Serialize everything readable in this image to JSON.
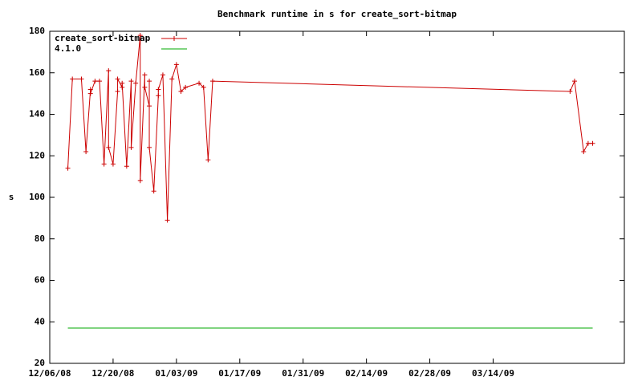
{
  "chart_data": {
    "type": "line",
    "title": "Benchmark runtime in s for create_sort-bitmap",
    "ylabel": "s",
    "xlim": [
      "12/06/08",
      "04/12/09"
    ],
    "xticks": [
      "12/06/08",
      "12/20/08",
      "01/03/09",
      "01/17/09",
      "01/31/09",
      "02/14/09",
      "02/28/09",
      "03/14/09"
    ],
    "ylim": [
      20,
      180
    ],
    "yticks": [
      20,
      40,
      60,
      80,
      100,
      120,
      140,
      160,
      180
    ],
    "legend": "upper left",
    "series": [
      {
        "name": "create_sort-bitmap",
        "color": "#cc0000",
        "marker": "plus",
        "x": [
          "12/10/08",
          "12/11/08",
          "12/13/08",
          "12/13/08",
          "12/14/08",
          "12/15/08",
          "12/15/08",
          "12/16/08",
          "12/17/08",
          "12/18/08",
          "12/19/08",
          "12/19/08",
          "12/20/08",
          "12/21/08",
          "12/21/08",
          "12/22/08",
          "12/22/08",
          "12/23/08",
          "12/24/08",
          "12/24/08",
          "12/25/08",
          "12/26/08",
          "12/26/08",
          "12/27/08",
          "12/27/08",
          "12/28/08",
          "12/28/08",
          "12/28/08",
          "12/29/08",
          "12/30/08",
          "12/30/08",
          "12/31/08",
          "01/01/09",
          "01/02/09",
          "01/03/09",
          "01/04/09",
          "01/05/09",
          "01/08/09",
          "01/09/09",
          "01/10/09",
          "01/11/09",
          "03/31/09",
          "04/01/09",
          "04/03/09",
          "04/04/09",
          "04/05/09"
        ],
        "values": [
          114,
          157,
          157,
          157,
          122,
          152,
          150,
          156,
          156,
          116,
          161,
          124,
          116,
          151,
          157,
          153,
          155,
          115,
          156,
          124,
          155,
          178,
          108,
          159,
          153,
          144,
          156,
          124,
          103,
          149,
          152,
          159,
          89,
          157,
          164,
          151,
          153,
          155,
          153,
          118,
          156,
          151,
          156,
          122,
          126,
          126
        ]
      },
      {
        "name": "4.1.0",
        "color": "#00aa00",
        "marker": "none",
        "x": [
          "12/10/08",
          "04/05/09"
        ],
        "values": [
          37,
          37
        ]
      }
    ]
  }
}
